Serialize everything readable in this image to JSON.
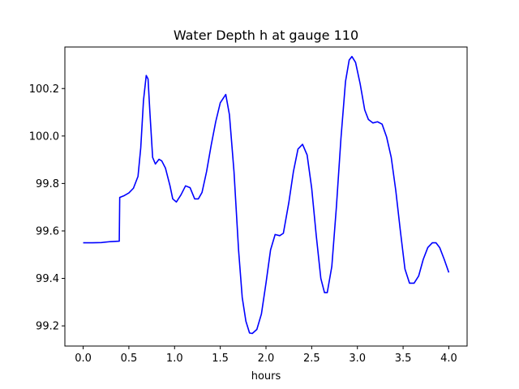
{
  "chart_data": {
    "type": "line",
    "title": "Water Depth h at gauge 110",
    "xlabel": "hours",
    "ylabel": "",
    "xlim": [
      -0.2,
      4.2
    ],
    "ylim": [
      99.115,
      100.375
    ],
    "x_ticks": [
      0.0,
      0.5,
      1.0,
      1.5,
      2.0,
      2.5,
      3.0,
      3.5,
      4.0
    ],
    "x_tick_labels": [
      "0.0",
      "0.5",
      "1.0",
      "1.5",
      "2.0",
      "2.5",
      "3.0",
      "3.5",
      "4.0"
    ],
    "y_ticks": [
      99.2,
      99.4,
      99.6,
      99.8,
      100.0,
      100.2
    ],
    "y_tick_labels": [
      "99.2",
      "99.4",
      "99.6",
      "99.8",
      "100.0",
      "100.2"
    ],
    "grid": false,
    "legend": "none",
    "series": [
      {
        "color": "#0000ff",
        "points": [
          [
            0.0,
            99.55
          ],
          [
            0.1,
            99.55
          ],
          [
            0.2,
            99.551
          ],
          [
            0.3,
            99.555
          ],
          [
            0.395,
            99.557
          ],
          [
            0.4,
            99.741
          ],
          [
            0.45,
            99.749
          ],
          [
            0.5,
            99.76
          ],
          [
            0.55,
            99.78
          ],
          [
            0.6,
            99.83
          ],
          [
            0.63,
            99.95
          ],
          [
            0.66,
            100.15
          ],
          [
            0.69,
            100.255
          ],
          [
            0.71,
            100.24
          ],
          [
            0.73,
            100.1
          ],
          [
            0.76,
            99.91
          ],
          [
            0.79,
            99.882
          ],
          [
            0.83,
            99.902
          ],
          [
            0.86,
            99.895
          ],
          [
            0.9,
            99.865
          ],
          [
            0.95,
            99.79
          ],
          [
            0.98,
            99.735
          ],
          [
            1.02,
            99.722
          ],
          [
            1.07,
            99.752
          ],
          [
            1.12,
            99.79
          ],
          [
            1.17,
            99.782
          ],
          [
            1.22,
            99.735
          ],
          [
            1.26,
            99.735
          ],
          [
            1.3,
            99.762
          ],
          [
            1.35,
            99.85
          ],
          [
            1.4,
            99.96
          ],
          [
            1.45,
            100.06
          ],
          [
            1.5,
            100.14
          ],
          [
            1.56,
            100.175
          ],
          [
            1.6,
            100.09
          ],
          [
            1.65,
            99.85
          ],
          [
            1.7,
            99.52
          ],
          [
            1.74,
            99.32
          ],
          [
            1.78,
            99.22
          ],
          [
            1.82,
            99.17
          ],
          [
            1.85,
            99.168
          ],
          [
            1.9,
            99.185
          ],
          [
            1.95,
            99.25
          ],
          [
            2.0,
            99.38
          ],
          [
            2.05,
            99.52
          ],
          [
            2.1,
            99.585
          ],
          [
            2.15,
            99.58
          ],
          [
            2.19,
            99.59
          ],
          [
            2.25,
            99.72
          ],
          [
            2.3,
            99.85
          ],
          [
            2.35,
            99.945
          ],
          [
            2.4,
            99.965
          ],
          [
            2.45,
            99.92
          ],
          [
            2.5,
            99.78
          ],
          [
            2.55,
            99.58
          ],
          [
            2.6,
            99.4
          ],
          [
            2.64,
            99.34
          ],
          [
            2.67,
            99.34
          ],
          [
            2.72,
            99.45
          ],
          [
            2.77,
            99.7
          ],
          [
            2.82,
            99.99
          ],
          [
            2.87,
            100.23
          ],
          [
            2.91,
            100.32
          ],
          [
            2.94,
            100.335
          ],
          [
            2.98,
            100.31
          ],
          [
            3.03,
            100.22
          ],
          [
            3.08,
            100.11
          ],
          [
            3.12,
            100.07
          ],
          [
            3.17,
            100.055
          ],
          [
            3.22,
            100.06
          ],
          [
            3.27,
            100.05
          ],
          [
            3.32,
            99.995
          ],
          [
            3.37,
            99.91
          ],
          [
            3.42,
            99.77
          ],
          [
            3.47,
            99.6
          ],
          [
            3.52,
            99.44
          ],
          [
            3.57,
            99.38
          ],
          [
            3.62,
            99.38
          ],
          [
            3.67,
            99.41
          ],
          [
            3.72,
            99.48
          ],
          [
            3.77,
            99.53
          ],
          [
            3.82,
            99.55
          ],
          [
            3.86,
            99.55
          ],
          [
            3.9,
            99.53
          ],
          [
            3.95,
            99.48
          ],
          [
            4.0,
            99.425
          ]
        ]
      }
    ]
  }
}
